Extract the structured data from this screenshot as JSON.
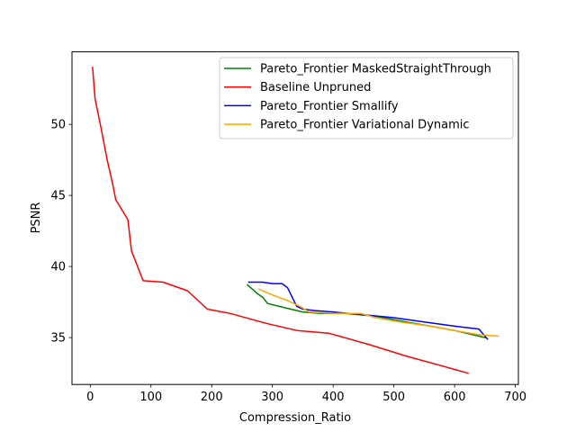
{
  "chart_data": {
    "type": "line",
    "title": "",
    "xlabel": "Compression_Ratio",
    "ylabel": "PSNR",
    "xlim": [
      -30,
      705
    ],
    "ylim": [
      31.7,
      55.1
    ],
    "xticks": [
      0,
      100,
      200,
      300,
      400,
      500,
      600,
      700
    ],
    "yticks": [
      35,
      40,
      45,
      50
    ],
    "grid": false,
    "legend_position": "top-right",
    "series": [
      {
        "name": "Pareto_Frontier MaskedStraightThrough",
        "color": "#008000",
        "x": [
          259,
          275,
          285,
          292,
          320,
          350,
          380,
          420,
          470,
          520,
          560,
          600,
          650
        ],
        "y": [
          38.7,
          38.1,
          37.8,
          37.4,
          37.1,
          36.8,
          36.7,
          36.7,
          36.5,
          36.1,
          35.8,
          35.5,
          35.0
        ]
      },
      {
        "name": "Baseline Unpruned",
        "color": "#ff0000",
        "x": [
          4,
          8,
          18,
          28,
          37,
          42,
          62,
          68,
          87,
          120,
          160,
          193,
          230,
          290,
          340,
          393,
          460,
          520,
          580,
          622
        ],
        "y": [
          54.0,
          51.8,
          49.7,
          47.5,
          45.8,
          44.7,
          43.3,
          41.1,
          39.0,
          38.9,
          38.3,
          37.0,
          36.7,
          36.0,
          35.5,
          35.3,
          34.5,
          33.7,
          33.0,
          32.5
        ]
      },
      {
        "name": "Pareto_Frontier Smallify",
        "color": "#0000ff",
        "x": [
          261,
          283,
          300,
          316,
          325,
          333,
          340,
          350,
          370,
          400,
          450,
          500,
          550,
          600,
          640,
          654
        ],
        "y": [
          38.9,
          38.9,
          38.8,
          38.8,
          38.5,
          37.8,
          37.2,
          37.0,
          36.9,
          36.8,
          36.6,
          36.4,
          36.1,
          35.8,
          35.6,
          34.9
        ]
      },
      {
        "name": "Pareto_Frontier Variational Dynamic",
        "color": "#ffa500",
        "x": [
          278,
          300,
          325,
          345,
          360,
          400,
          445,
          470,
          510,
          560,
          600,
          640,
          672
        ],
        "y": [
          38.4,
          38.0,
          37.6,
          37.2,
          36.8,
          36.7,
          36.7,
          36.4,
          36.1,
          35.8,
          35.5,
          35.2,
          35.1
        ]
      }
    ]
  }
}
